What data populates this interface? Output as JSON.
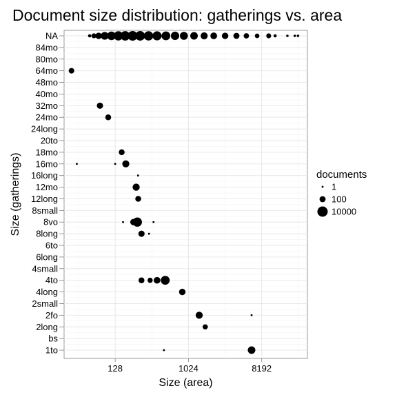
{
  "chart_data": {
    "type": "scatter",
    "title": "Document size distribution: gatherings vs. area",
    "xlabel": "Size (area)",
    "ylabel": "Size (gatherings)",
    "x_scale": "log2",
    "xlim": [
      30,
      30000
    ],
    "x_ticks": [
      128,
      1024,
      8192
    ],
    "x_tick_labels": [
      "128",
      "1024",
      "8192"
    ],
    "y_categories": [
      "NA",
      "84mo",
      "80mo",
      "64mo",
      "48mo",
      "40mo",
      "32mo",
      "24mo",
      "24long",
      "20to",
      "18mo",
      "16mo",
      "16long",
      "12mo",
      "12long",
      "8small",
      "8vo",
      "8long",
      "6to",
      "6long",
      "4small",
      "4to",
      "4long",
      "2small",
      "2fo",
      "2long",
      "bs",
      "1to"
    ],
    "grid": true,
    "legend": {
      "title": "documents",
      "entries": [
        {
          "label": "1",
          "value": 1
        },
        {
          "label": "100",
          "value": 100
        },
        {
          "label": "10000",
          "value": 10000
        }
      ],
      "placement": "right"
    },
    "points": [
      {
        "y": "NA",
        "x": 62,
        "documents": 5
      },
      {
        "y": "NA",
        "x": 70,
        "documents": 30
      },
      {
        "y": "NA",
        "x": 80,
        "documents": 150
      },
      {
        "y": "NA",
        "x": 95,
        "documents": 600
      },
      {
        "y": "NA",
        "x": 115,
        "documents": 1500
      },
      {
        "y": "NA",
        "x": 140,
        "documents": 3000
      },
      {
        "y": "NA",
        "x": 170,
        "documents": 4000
      },
      {
        "y": "NA",
        "x": 210,
        "documents": 5000
      },
      {
        "y": "NA",
        "x": 260,
        "documents": 4500
      },
      {
        "y": "NA",
        "x": 330,
        "documents": 3500
      },
      {
        "y": "NA",
        "x": 420,
        "documents": 2500
      },
      {
        "y": "NA",
        "x": 540,
        "documents": 1800
      },
      {
        "y": "NA",
        "x": 700,
        "documents": 1200
      },
      {
        "y": "NA",
        "x": 900,
        "documents": 800
      },
      {
        "y": "NA",
        "x": 1200,
        "documents": 500
      },
      {
        "y": "NA",
        "x": 1600,
        "documents": 300
      },
      {
        "y": "NA",
        "x": 2100,
        "documents": 200
      },
      {
        "y": "NA",
        "x": 2900,
        "documents": 150
      },
      {
        "y": "NA",
        "x": 4000,
        "documents": 100
      },
      {
        "y": "NA",
        "x": 5300,
        "documents": 50
      },
      {
        "y": "NA",
        "x": 7200,
        "documents": 20
      },
      {
        "y": "NA",
        "x": 10000,
        "documents": 30
      },
      {
        "y": "NA",
        "x": 12000,
        "documents": 4
      },
      {
        "y": "NA",
        "x": 17000,
        "documents": 2
      },
      {
        "y": "NA",
        "x": 21000,
        "documents": 2
      },
      {
        "y": "NA",
        "x": 23000,
        "documents": 2
      },
      {
        "y": "64mo",
        "x": 37,
        "documents": 60
      },
      {
        "y": "32mo",
        "x": 83,
        "documents": 120
      },
      {
        "y": "24mo",
        "x": 105,
        "documents": 80
      },
      {
        "y": "18mo",
        "x": 154,
        "documents": 80
      },
      {
        "y": "16mo",
        "x": 43,
        "documents": 1
      },
      {
        "y": "16mo",
        "x": 128,
        "documents": 1
      },
      {
        "y": "16mo",
        "x": 173,
        "documents": 300
      },
      {
        "y": "16long",
        "x": 245,
        "documents": 1
      },
      {
        "y": "12mo",
        "x": 232,
        "documents": 300
      },
      {
        "y": "12long",
        "x": 246,
        "documents": 80
      },
      {
        "y": "8vo",
        "x": 160,
        "documents": 1
      },
      {
        "y": "8vo",
        "x": 215,
        "documents": 150
      },
      {
        "y": "8vo",
        "x": 240,
        "documents": 3000
      },
      {
        "y": "8vo",
        "x": 380,
        "documents": 1
      },
      {
        "y": "8long",
        "x": 270,
        "documents": 120
      },
      {
        "y": "8long",
        "x": 335,
        "documents": 1
      },
      {
        "y": "4to",
        "x": 270,
        "documents": 80
      },
      {
        "y": "4to",
        "x": 345,
        "documents": 40
      },
      {
        "y": "4to",
        "x": 420,
        "documents": 200
      },
      {
        "y": "4to",
        "x": 530,
        "documents": 2000
      },
      {
        "y": "4long",
        "x": 860,
        "documents": 150
      },
      {
        "y": "2fo",
        "x": 1390,
        "documents": 300
      },
      {
        "y": "2fo",
        "x": 6150,
        "documents": 1
      },
      {
        "y": "2long",
        "x": 1650,
        "documents": 40
      },
      {
        "y": "1to",
        "x": 510,
        "documents": 1
      },
      {
        "y": "1to",
        "x": 6150,
        "documents": 500
      }
    ]
  }
}
